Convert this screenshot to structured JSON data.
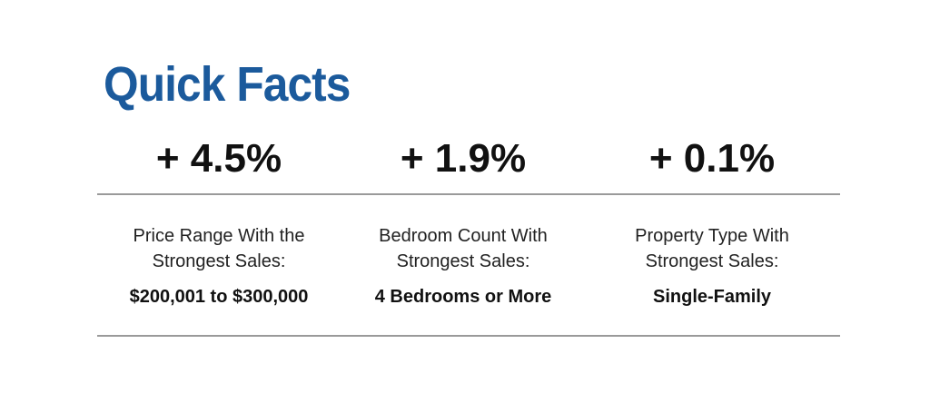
{
  "header": {
    "title": "Quick Facts"
  },
  "facts": [
    {
      "change": "+ 4.5%",
      "label_lines": [
        "Price Range With the",
        "Strongest Sales:"
      ],
      "value": "$200,001 to $300,000"
    },
    {
      "change": "+ 1.9%",
      "label_lines": [
        "Bedroom Count With",
        "Strongest Sales:"
      ],
      "value": "4 Bedrooms or More"
    },
    {
      "change": "+ 0.1%",
      "label_lines": [
        "Property Type With",
        "Strongest Sales:"
      ],
      "value": "Single-Family"
    }
  ]
}
